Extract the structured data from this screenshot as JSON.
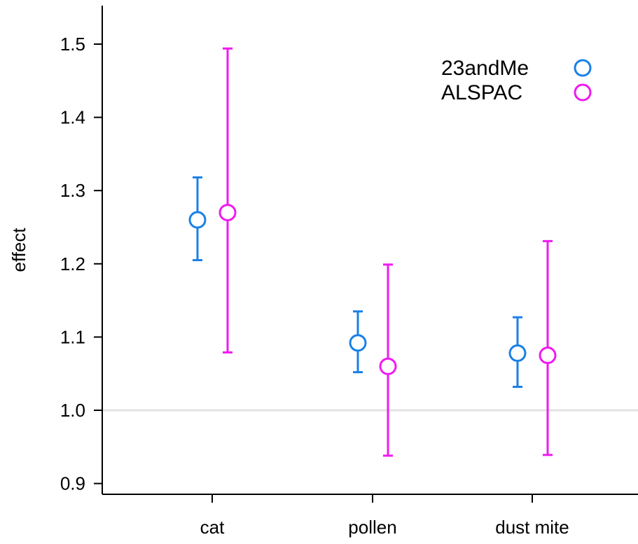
{
  "chart_data": {
    "type": "scatter",
    "subtype": "point-with-error-bars",
    "categories": [
      "cat",
      "pollen",
      "dust mite"
    ],
    "ylabel": "effect",
    "xlabel": "",
    "ylim": [
      0.88,
      1.54
    ],
    "yticks": [
      "0.9",
      "1.0",
      "1.1",
      "1.2",
      "1.3",
      "1.4",
      "1.5"
    ],
    "reference_line": 1.0,
    "grid": false,
    "legend_position": "top-right",
    "series": [
      {
        "name": "23andMe",
        "color": "#1a80e6",
        "values": [
          1.26,
          1.092,
          1.078
        ],
        "lower": [
          1.205,
          1.052,
          1.032
        ],
        "upper": [
          1.318,
          1.135,
          1.127
        ]
      },
      {
        "name": "ALSPAC",
        "color": "#f01af0",
        "values": [
          1.27,
          1.06,
          1.075
        ],
        "lower": [
          1.079,
          0.938,
          0.939
        ],
        "upper": [
          1.494,
          1.199,
          1.231
        ]
      }
    ]
  }
}
